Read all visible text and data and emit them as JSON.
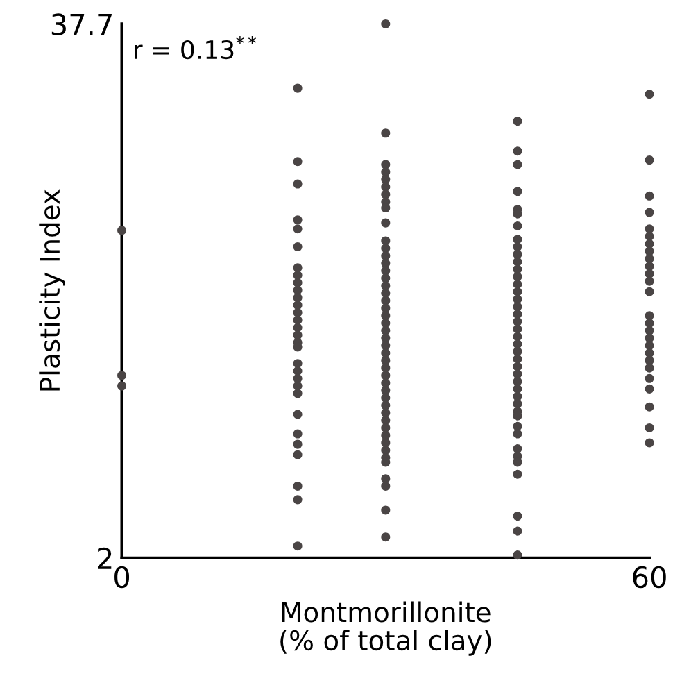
{
  "chart_data": {
    "type": "scatter",
    "xlabel": "Montmorillonite\n(% of total clay)",
    "ylabel": "Plasticity Index",
    "annotations": [
      "r = 0.13$^{**}$"
    ],
    "xlim": [
      0,
      60
    ],
    "xticks": [
      0,
      60
    ],
    "ylim": [
      2,
      37.7
    ],
    "yticks": [
      2,
      37.7
    ],
    "grid": false,
    "marker": "circle",
    "series": [
      {
        "color": "#4a4545",
        "x": [
          0,
          0,
          0
        ],
        "values": [
          23.9,
          14.2,
          13.5
        ]
      },
      {
        "color": "#4a4545",
        "x": [
          20,
          20,
          20,
          20,
          20,
          20,
          20,
          20,
          20,
          20,
          20,
          20,
          20,
          20,
          20,
          20,
          20,
          20,
          20,
          20,
          20,
          20,
          20,
          20,
          20,
          20,
          20,
          20,
          20,
          20
        ],
        "values": [
          33.4,
          28.5,
          27.0,
          24.6,
          24.0,
          22.8,
          21.4,
          20.9,
          20.4,
          19.9,
          19.4,
          18.9,
          18.4,
          17.9,
          17.4,
          16.9,
          16.4,
          16.1,
          15.0,
          14.5,
          14.0,
          13.5,
          13.0,
          11.6,
          10.3,
          9.6,
          8.9,
          6.8,
          5.9,
          2.8
        ]
      },
      {
        "color": "#4a4545",
        "x": [
          30,
          30,
          30,
          30,
          30,
          30,
          30,
          30,
          30,
          30,
          30,
          30,
          30,
          30,
          30,
          30,
          30,
          30,
          30,
          30,
          30,
          30,
          30,
          30,
          30,
          30,
          30,
          30,
          30,
          30,
          30,
          30,
          30,
          30,
          30,
          30,
          30,
          30,
          30,
          30,
          30,
          30,
          30,
          30,
          30
        ],
        "values": [
          37.7,
          30.4,
          28.3,
          27.8,
          27.3,
          26.8,
          26.3,
          25.8,
          25.4,
          24.4,
          23.2,
          22.7,
          22.2,
          21.7,
          21.2,
          20.7,
          20.2,
          19.7,
          19.2,
          18.7,
          18.2,
          17.7,
          17.2,
          16.7,
          16.2,
          15.7,
          15.2,
          14.7,
          14.2,
          13.7,
          13.2,
          12.7,
          12.2,
          11.7,
          11.2,
          10.7,
          10.2,
          9.7,
          9.2,
          8.7,
          8.4,
          7.3,
          6.8,
          5.2,
          3.4
        ]
      },
      {
        "color": "#4a4545",
        "x": [
          45,
          45,
          45,
          45,
          45,
          45,
          45,
          45,
          45,
          45,
          45,
          45,
          45,
          45,
          45,
          45,
          45,
          45,
          45,
          45,
          45,
          45,
          45,
          45,
          45,
          45,
          45,
          45,
          45,
          45,
          45,
          45,
          45,
          45,
          45,
          45,
          45,
          45,
          45,
          45,
          45
        ],
        "values": [
          31.2,
          29.2,
          28.3,
          26.5,
          25.3,
          25.0,
          24.2,
          23.3,
          22.8,
          22.3,
          21.8,
          21.3,
          20.8,
          20.3,
          19.8,
          19.3,
          18.8,
          18.3,
          17.8,
          17.3,
          16.8,
          16.3,
          15.8,
          15.3,
          14.8,
          14.3,
          13.8,
          13.3,
          12.8,
          12.3,
          11.8,
          11.5,
          10.8,
          10.3,
          9.3,
          8.8,
          8.4,
          7.6,
          4.8,
          3.8,
          2.2
        ]
      },
      {
        "color": "#4a4545",
        "x": [
          60,
          60,
          60,
          60,
          60,
          60,
          60,
          60,
          60,
          60,
          60,
          60,
          60,
          60,
          60,
          60,
          60,
          60,
          60,
          60,
          60,
          60,
          60,
          60,
          60,
          60
        ],
        "values": [
          33.0,
          28.6,
          26.2,
          25.1,
          24.0,
          23.5,
          23.0,
          22.5,
          22.0,
          21.5,
          21.0,
          20.5,
          19.8,
          18.2,
          17.7,
          17.2,
          16.7,
          16.2,
          15.7,
          15.2,
          14.7,
          14.0,
          13.3,
          12.1,
          10.7,
          9.7
        ]
      }
    ]
  }
}
